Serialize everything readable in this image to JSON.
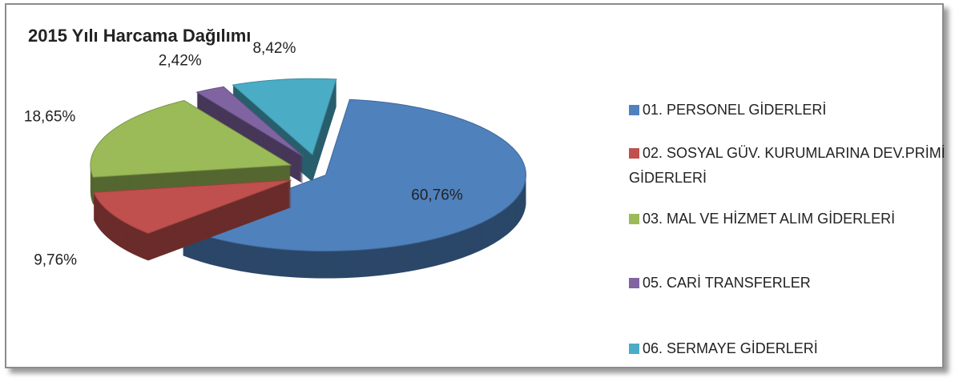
{
  "chart_data": {
    "type": "pie",
    "title": "2015 Yılı Harcama Dağılımı",
    "categories": [
      "01.  PERSONEL GİDERLERİ",
      "02.  SOSYAL GÜV. KURUMLARINA DEV.PRİMİ GİDERLERİ",
      "03.  MAL VE HİZMET ALIM GİDERLERİ",
      "05.  CARİ TRANSFERLER",
      "06.  SERMAYE GİDERLERİ"
    ],
    "values": [
      60.76,
      9.76,
      18.65,
      2.42,
      8.42
    ],
    "value_labels": [
      "60,76%",
      "9,76%",
      "18,65%",
      "2,42%",
      "8,42%"
    ],
    "colors": [
      "#4f81bd",
      "#c0504d",
      "#9bbb59",
      "#8064a2",
      "#4bacc6"
    ],
    "legend": "right"
  }
}
